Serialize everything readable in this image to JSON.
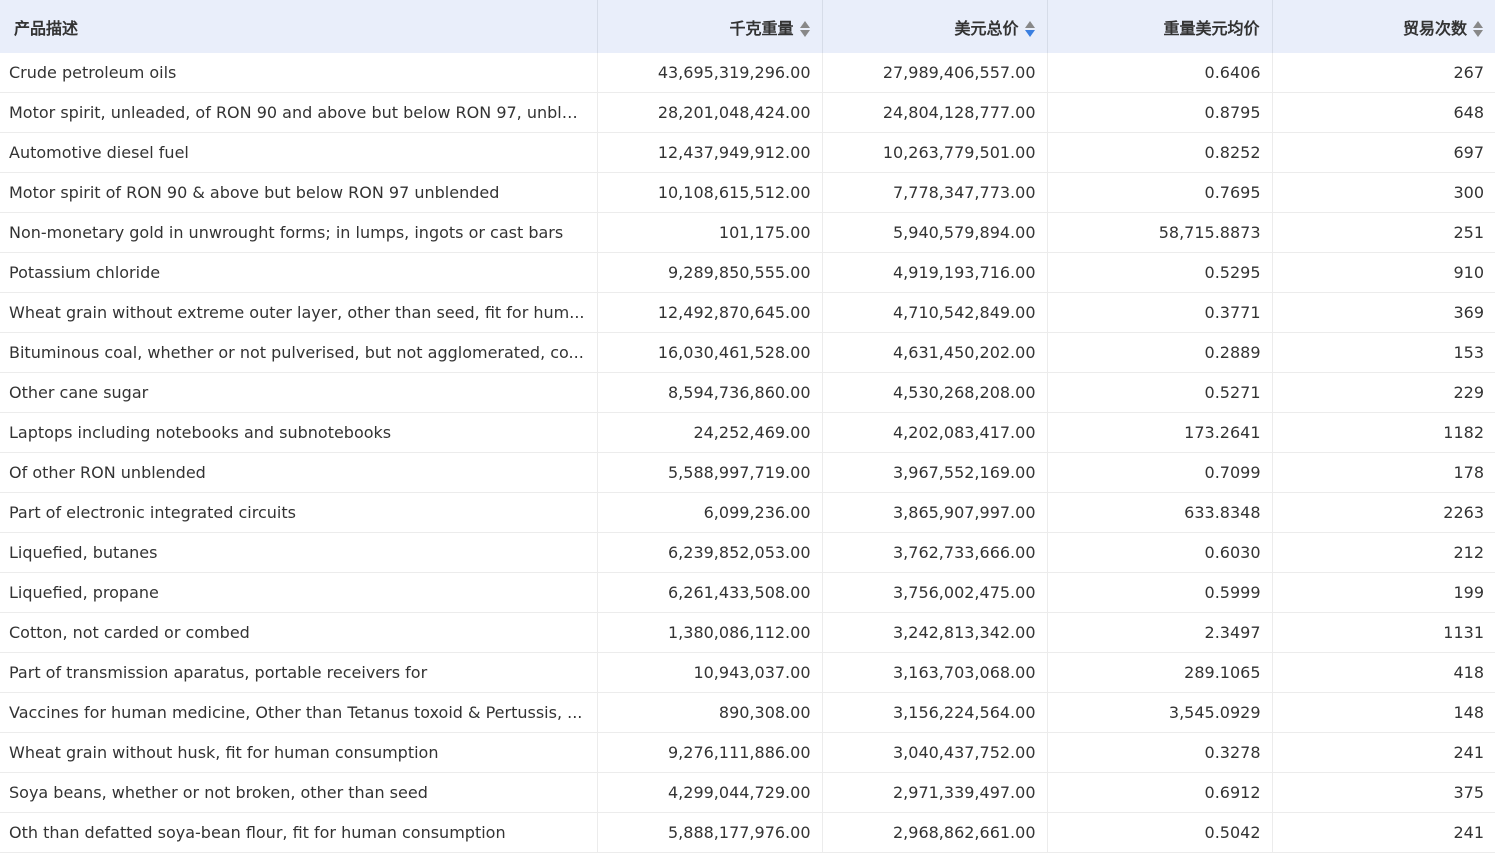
{
  "headers": [
    {
      "label": "产品描述",
      "sortable": false
    },
    {
      "label": "千克重量",
      "sortable": true,
      "sort": "none"
    },
    {
      "label": "美元总价",
      "sortable": true,
      "sort": "desc"
    },
    {
      "label": "重量美元均价",
      "sortable": false
    },
    {
      "label": "贸易次数",
      "sortable": true,
      "sort": "none"
    }
  ],
  "accent": "#3b7fe0",
  "rows": [
    [
      "Crude petroleum oils",
      "43,695,319,296.00",
      "27,989,406,557.00",
      "0.6406",
      "267"
    ],
    [
      "Motor spirit, unleaded, of RON 90 and above but below RON 97, unble...",
      "28,201,048,424.00",
      "24,804,128,777.00",
      "0.8795",
      "648"
    ],
    [
      "Automotive diesel fuel",
      "12,437,949,912.00",
      "10,263,779,501.00",
      "0.8252",
      "697"
    ],
    [
      "Motor spirit of RON 90 & above but below RON 97 unblended",
      "10,108,615,512.00",
      "7,778,347,773.00",
      "0.7695",
      "300"
    ],
    [
      "Non-monetary gold in unwrought forms; in lumps, ingots or cast bars",
      "101,175.00",
      "5,940,579,894.00",
      "58,715.8873",
      "251"
    ],
    [
      "Potassium chloride",
      "9,289,850,555.00",
      "4,919,193,716.00",
      "0.5295",
      "910"
    ],
    [
      "Wheat grain without extreme outer layer, other than seed, fit for hum...",
      "12,492,870,645.00",
      "4,710,542,849.00",
      "0.3771",
      "369"
    ],
    [
      "Bituminous coal, whether or not pulverised, but not agglomerated, co...",
      "16,030,461,528.00",
      "4,631,450,202.00",
      "0.2889",
      "153"
    ],
    [
      "Other cane sugar",
      "8,594,736,860.00",
      "4,530,268,208.00",
      "0.5271",
      "229"
    ],
    [
      "Laptops including notebooks and subnotebooks",
      "24,252,469.00",
      "4,202,083,417.00",
      "173.2641",
      "1182"
    ],
    [
      "Of other RON unblended",
      "5,588,997,719.00",
      "3,967,552,169.00",
      "0.7099",
      "178"
    ],
    [
      "Part of electronic integrated circuits",
      "6,099,236.00",
      "3,865,907,997.00",
      "633.8348",
      "2263"
    ],
    [
      "Liquefied, butanes",
      "6,239,852,053.00",
      "3,762,733,666.00",
      "0.6030",
      "212"
    ],
    [
      "Liquefied, propane",
      "6,261,433,508.00",
      "3,756,002,475.00",
      "0.5999",
      "199"
    ],
    [
      "Cotton, not carded or combed",
      "1,380,086,112.00",
      "3,242,813,342.00",
      "2.3497",
      "1131"
    ],
    [
      "Part of transmission aparatus, portable receivers for",
      "10,943,037.00",
      "3,163,703,068.00",
      "289.1065",
      "418"
    ],
    [
      "Vaccines for human medicine, Other than Tetanus toxoid & Pertussis, ...",
      "890,308.00",
      "3,156,224,564.00",
      "3,545.0929",
      "148"
    ],
    [
      "Wheat grain without husk, fit for human consumption",
      "9,276,111,886.00",
      "3,040,437,752.00",
      "0.3278",
      "241"
    ],
    [
      "Soya beans, whether or not broken, other than seed",
      "4,299,044,729.00",
      "2,971,339,497.00",
      "0.6912",
      "375"
    ],
    [
      "Oth than defatted soya-bean flour, fit for human consumption",
      "5,888,177,976.00",
      "2,968,862,661.00",
      "0.5042",
      "241"
    ]
  ]
}
